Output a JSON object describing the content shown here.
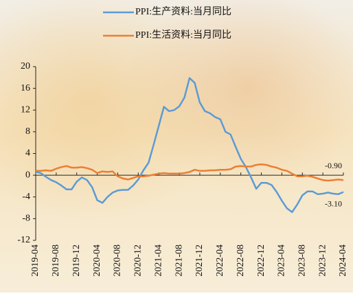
{
  "chart_data": {
    "type": "line",
    "categories": [
      "2019-04",
      null,
      null,
      null,
      "2019-08",
      null,
      null,
      null,
      "2019-12",
      null,
      null,
      null,
      "2020-04",
      null,
      null,
      null,
      "2020-08",
      null,
      null,
      null,
      "2020-12",
      null,
      null,
      null,
      "2021-04",
      null,
      null,
      null,
      "2021-08",
      null,
      null,
      null,
      "2021-12",
      null,
      null,
      null,
      "2022-04",
      null,
      null,
      null,
      "2022-08",
      null,
      null,
      null,
      "2022-12",
      null,
      null,
      null,
      "2023-04",
      null,
      null,
      null,
      "2023-08",
      null,
      null,
      null,
      "2023-12",
      null,
      null,
      null,
      "2024-04"
    ],
    "series": [
      {
        "name": "PPI:生产资料:当月同比",
        "color": "#5b9bd5",
        "values": [
          0.6,
          0.4,
          -0.3,
          -0.9,
          -1.3,
          -1.9,
          -2.6,
          -2.6,
          -1.2,
          -0.4,
          -0.9,
          -2.2,
          -4.6,
          -5.1,
          -4.0,
          -3.2,
          -2.8,
          -2.7,
          -2.7,
          -1.9,
          -0.8,
          0.9,
          2.3,
          5.6,
          9.1,
          12.6,
          11.8,
          12.0,
          12.7,
          14.3,
          17.9,
          17.0,
          13.4,
          11.8,
          11.4,
          10.7,
          10.3,
          8.0,
          7.5,
          5.2,
          3.0,
          1.5,
          -0.4,
          -2.5,
          -1.4,
          -1.4,
          -1.8,
          -3.1,
          -4.7,
          -6.1,
          -6.8,
          -5.4,
          -3.7,
          -3.0,
          -3.0,
          -3.5,
          -3.4,
          -3.2,
          -3.4,
          -3.5,
          -3.1
        ],
        "value_labels": [
          null,
          null,
          null,
          null,
          null,
          null,
          null,
          null,
          null,
          null,
          null,
          null,
          null,
          null,
          null,
          null,
          null,
          null,
          null,
          null,
          null,
          null,
          null,
          null,
          null,
          null,
          null,
          null,
          null,
          null,
          null,
          null,
          null,
          null,
          null,
          null,
          null,
          null,
          null,
          null,
          null,
          null,
          null,
          null,
          null,
          null,
          null,
          null,
          null,
          null,
          null,
          null,
          null,
          null,
          null,
          null,
          null,
          null,
          null,
          null,
          "-3.10"
        ]
      },
      {
        "name": "PPI:生活资料:当月同比",
        "color": "#ed7d31",
        "values": [
          0.8,
          0.8,
          0.9,
          0.8,
          1.2,
          1.5,
          1.7,
          1.4,
          1.4,
          1.5,
          1.3,
          1.0,
          0.4,
          0.7,
          0.6,
          0.7,
          -0.2,
          -0.6,
          -0.8,
          -0.5,
          -0.2,
          -0.2,
          -0.1,
          0.1,
          0.3,
          0.4,
          0.3,
          0.3,
          0.3,
          0.4,
          0.6,
          1.0,
          0.8,
          0.8,
          0.9,
          0.9,
          1.0,
          1.0,
          1.1,
          1.6,
          1.7,
          1.6,
          1.6,
          1.9,
          2.0,
          1.9,
          1.6,
          1.4,
          1.0,
          0.8,
          0.3,
          -0.2,
          -0.2,
          -0.1,
          -0.3,
          -0.6,
          -0.9,
          -1.0,
          -0.9,
          -0.8,
          -0.9
        ],
        "value_labels": [
          null,
          null,
          null,
          null,
          null,
          null,
          null,
          null,
          null,
          null,
          null,
          null,
          null,
          null,
          null,
          null,
          null,
          null,
          null,
          null,
          null,
          null,
          null,
          null,
          null,
          null,
          null,
          null,
          null,
          null,
          null,
          null,
          null,
          null,
          null,
          null,
          null,
          null,
          null,
          null,
          null,
          null,
          null,
          null,
          null,
          null,
          null,
          null,
          null,
          null,
          null,
          null,
          null,
          null,
          null,
          null,
          null,
          null,
          null,
          null,
          "-0.90"
        ]
      }
    ],
    "ylim": [
      -12,
      20
    ],
    "yticks": [
      -12,
      -8,
      -4,
      0,
      4,
      8,
      12,
      16,
      20
    ],
    "grid": false,
    "legend": "top"
  }
}
